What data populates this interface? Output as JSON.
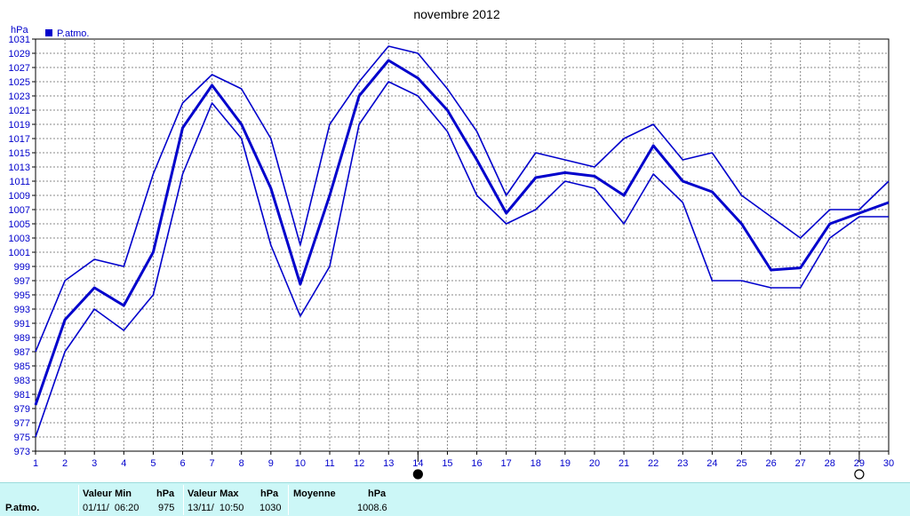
{
  "colors": {
    "series": "#0000cc",
    "grid": "#888888",
    "footer_bg": "#ccf7f7"
  },
  "chart_data": {
    "type": "line",
    "title": "novembre 2012",
    "ylabel": "hPa",
    "legend": {
      "label": "P.atmo.",
      "placement": "top-left"
    },
    "ylim": [
      973,
      1031
    ],
    "y_ticks": [
      973,
      975,
      977,
      979,
      981,
      983,
      985,
      987,
      989,
      991,
      993,
      995,
      997,
      999,
      1001,
      1003,
      1005,
      1007,
      1009,
      1011,
      1013,
      1015,
      1017,
      1019,
      1021,
      1023,
      1025,
      1027,
      1029,
      1031
    ],
    "x": [
      1,
      2,
      3,
      4,
      5,
      6,
      7,
      8,
      9,
      10,
      11,
      12,
      13,
      14,
      15,
      16,
      17,
      18,
      19,
      20,
      21,
      22,
      23,
      24,
      25,
      26,
      27,
      28,
      29,
      30
    ],
    "grid": true,
    "series": [
      {
        "name": "P.atmo.",
        "role": "max",
        "values": [
          987,
          997,
          1000,
          999,
          1012,
          1022,
          1026,
          1024,
          1017,
          1002,
          1019,
          1025,
          1030,
          1029,
          1024,
          1018,
          1009,
          1015,
          1014,
          1013,
          1017,
          1019,
          1014,
          1015,
          1009,
          1006,
          1003,
          1007,
          1007,
          1011
        ]
      },
      {
        "name": "P.atmo.",
        "role": "mean",
        "values": [
          979.5,
          991.5,
          996,
          993.5,
          1001,
          1018.5,
          1024.5,
          1019,
          1010,
          996.5,
          1009,
          1023,
          1028,
          1025.5,
          1021,
          1014,
          1006.5,
          1011.5,
          1012.2,
          1011.7,
          1009,
          1016,
          1011,
          1009.5,
          1005,
          998.5,
          998.8,
          1005,
          1006.5,
          1008
        ]
      },
      {
        "name": "P.atmo.",
        "role": "min",
        "values": [
          975,
          987,
          993,
          990,
          995,
          1012,
          1022,
          1017,
          1002,
          992,
          999,
          1019,
          1025,
          1023,
          1018,
          1009,
          1005,
          1007,
          1011,
          1010,
          1005,
          1012,
          1008,
          997,
          997,
          996,
          996,
          1003,
          1006,
          1006
        ]
      }
    ],
    "moon_markers": [
      {
        "day": 14,
        "phase": "new-moon"
      },
      {
        "day": 29,
        "phase": "full-moon"
      }
    ]
  },
  "summary": {
    "row_label": "P.atmo.",
    "min_header": "Valeur Min",
    "min_unit": "hPa",
    "min_date": "01/11/  06:20",
    "min_value": "975",
    "max_header": "Valeur Max",
    "max_unit": "hPa",
    "max_date": "13/11/  10:50",
    "max_value": "1030",
    "avg_header": "Moyenne",
    "avg_unit": "hPa",
    "avg_value": "1008.6"
  }
}
